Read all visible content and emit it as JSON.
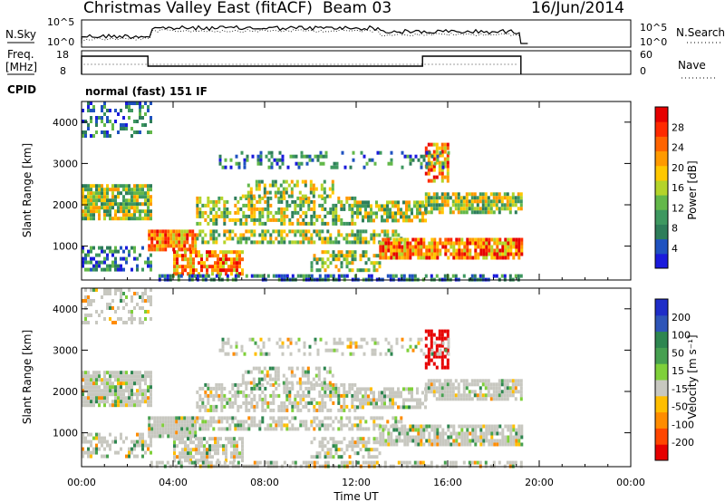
{
  "header": {
    "station": "Christmas Valley East (fitACF)",
    "beam": "Beam 03",
    "date": "16/Jun/2014"
  },
  "noise_panel": {
    "left_label": "N.Sky",
    "right_label": "N.Search",
    "left_ticks": [
      "10^5",
      "10^0"
    ],
    "right_ticks": [
      "10^5",
      "10^0"
    ]
  },
  "freq_panel": {
    "left_label_1": "Freq.",
    "left_label_2": "[MHz]",
    "right_label": "Nave",
    "left_ticks": [
      "18",
      "8"
    ],
    "right_ticks": [
      "60",
      "0"
    ]
  },
  "cpid": {
    "label": "CPID",
    "value": "normal (fast) 151 IF"
  },
  "colors": {
    "power_scale": [
      "#1a1adc",
      "#1f52c0",
      "#2e7d5a",
      "#3e9860",
      "#63b84a",
      "#b4d42a",
      "#ffc800",
      "#ff9a00",
      "#ff6400",
      "#ff2a00",
      "#e60000"
    ],
    "velocity_scale": [
      "#1e2dc8",
      "#2e55b8",
      "#2e8650",
      "#46a050",
      "#7fd03a",
      "#c8c8c0",
      "#ffbe00",
      "#ff8c00",
      "#ff4600",
      "#e60000"
    ]
  },
  "chart_data": [
    {
      "type": "heatmap",
      "title": "Power",
      "ylabel": "Slant Range [km]",
      "y_ticks": [
        1000,
        2000,
        3000,
        4000
      ],
      "ylim": [
        180,
        4500
      ],
      "x_ticks": [
        "00:00",
        "04:00",
        "08:00",
        "12:00",
        "16:00",
        "20:00",
        "00:00"
      ],
      "x_hours": [
        0,
        24
      ],
      "colorbar": {
        "label": "Power [dB]",
        "range": [
          0,
          32
        ],
        "ticks": [
          4,
          8,
          12,
          16,
          20,
          24,
          28
        ]
      }
    },
    {
      "type": "heatmap",
      "title": "Velocity",
      "ylabel": "Slant Range [km]",
      "xlabel": "Time UT",
      "y_ticks": [
        1000,
        2000,
        3000,
        4000
      ],
      "ylim": [
        180,
        4500
      ],
      "x_ticks": [
        "00:00",
        "04:00",
        "08:00",
        "12:00",
        "16:00",
        "20:00",
        "00:00"
      ],
      "x_hours": [
        0,
        24
      ],
      "colorbar": {
        "label": "Velocity [m s⁻¹]",
        "ticks": [
          "200",
          "100",
          "50",
          "15",
          "-15",
          "-50",
          "-100",
          "-200"
        ]
      }
    }
  ]
}
